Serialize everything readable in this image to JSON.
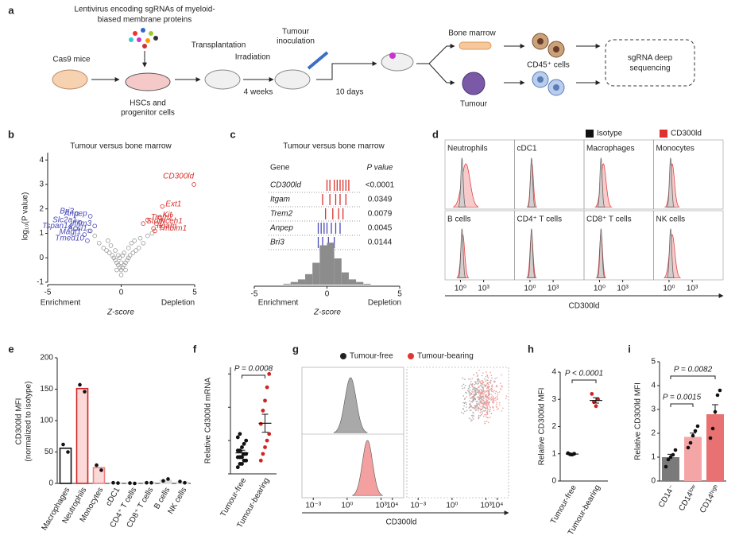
{
  "panel_labels": [
    "a",
    "b",
    "c",
    "d",
    "e",
    "f",
    "g",
    "h",
    "i"
  ],
  "schematic": {
    "title_lines": [
      "Lentivirus encoding sgRNAs of myeloid-",
      "biased membrane proteins"
    ],
    "cas9": "Cas9 mice",
    "hsc_lines": [
      "HSCs and",
      "progenitor cells"
    ],
    "transplantation": "Transplantation",
    "irradiation": "Irradiation",
    "weeks": "4 weeks",
    "inoculation_lines": [
      "Tumour",
      "inoculation"
    ],
    "days": "10 days",
    "bone_marrow": "Bone marrow",
    "tumour": "Tumour",
    "cd45": "CD45⁺ cells",
    "sequencing_lines": [
      "sgRNA deep",
      "sequencing"
    ]
  },
  "chart_data": [
    {
      "type": "scatter",
      "title": "Tumour versus bone marrow",
      "xlabel": "Z-score",
      "ylabel": "log₁₀(P value)",
      "annotations": [
        "Enrichment",
        "Depletion"
      ],
      "xlim": [
        -5,
        5
      ],
      "xticks": [
        -5,
        0,
        5
      ],
      "ylim": [
        -1,
        4.3
      ],
      "yticks": [
        -1,
        0,
        1,
        2,
        3,
        4
      ],
      "series": [
        {
          "color": "#9a9a9a",
          "x": [
            -1.5,
            -1.2,
            -1,
            -0.8,
            -0.6,
            -0.5,
            -0.4,
            -0.3,
            -0.2,
            -0.1,
            0,
            0.1,
            0.2,
            0.3,
            0.4,
            0.5,
            0.6,
            0.8,
            1,
            1.2,
            1.5,
            -0.7,
            -0.4,
            -0.2,
            0,
            0.2,
            0.5,
            0.7,
            -1.8,
            1.8,
            -0.9,
            0.9,
            -0.3,
            0.3,
            0,
            -0.1,
            0.1,
            -2.2,
            2.1,
            1.3
          ],
          "y": [
            0.6,
            0.4,
            0.3,
            0.2,
            0.1,
            0,
            -0.1,
            -0.2,
            -0.3,
            -0.4,
            -0.5,
            -0.4,
            -0.3,
            -0.2,
            -0.1,
            0,
            0.1,
            0.2,
            0.3,
            0.4,
            0.6,
            0.5,
            0.3,
            0.1,
            -0.2,
            0.2,
            0.4,
            0.6,
            0.9,
            0.9,
            0.7,
            0.7,
            -0.5,
            -0.5,
            -0.7,
            0,
            0.1,
            1.1,
            1.0,
            0.8
          ]
        },
        {
          "color": "#d9302c",
          "labels": [
            "CD300ld",
            "Ext1",
            "Kit",
            "Nceh1",
            "Itgam",
            "Tmbim1",
            "Trem2",
            "Stom"
          ],
          "x": [
            4.95,
            2.8,
            2.6,
            2.4,
            2.2,
            2.3,
            1.8,
            1.5
          ],
          "y": [
            3.0,
            2.1,
            1.65,
            1.4,
            1.2,
            1.1,
            1.55,
            1.4
          ]
        },
        {
          "color": "#4a4ab8",
          "labels": [
            "Bri3",
            "Anpep",
            "Slc2a1",
            "Ifitm3",
            "Tspan14",
            "Acsl1",
            "Magt1",
            "Tmed10"
          ],
          "x": [
            -3.0,
            -2.1,
            -2.8,
            -1.8,
            -3.1,
            -2.1,
            -2.5,
            -2.3
          ],
          "y": [
            1.8,
            1.7,
            1.45,
            1.3,
            1.2,
            1.1,
            0.95,
            0.7
          ]
        }
      ]
    },
    {
      "type": "barcode",
      "title": "Tumour versus bone marrow",
      "headers": [
        "Gene",
        "P value"
      ],
      "xlabel": "Z-score",
      "annotations": [
        "Enrichment",
        "Depletion"
      ],
      "xlim": [
        -5,
        5
      ],
      "xticks": [
        -5,
        0,
        5
      ],
      "genes": [
        {
          "name": "CD300ld",
          "p": "<0.0001",
          "color": "#d9302c",
          "z": [
            0.0,
            0.2,
            0.5,
            0.7,
            0.9,
            1.1,
            1.3,
            1.5
          ]
        },
        {
          "name": "Itgam",
          "p": "0.0349",
          "color": "#d9302c",
          "z": [
            -0.3,
            0.2,
            0.6,
            0.9,
            1.3
          ]
        },
        {
          "name": "Trem2",
          "p": "0.0079",
          "color": "#d9302c",
          "z": [
            -0.1,
            0.4,
            0.8,
            1.1
          ]
        },
        {
          "name": "Anpep",
          "p": "0.0045",
          "color": "#4a4ab8",
          "z": [
            -0.6,
            -0.4,
            -0.2,
            0.0,
            0.3,
            0.6,
            0.9
          ]
        },
        {
          "name": "Bri3",
          "p": "0.0144",
          "color": "#4a4ab8",
          "z": [
            -0.6,
            -0.3,
            0.1,
            0.5
          ]
        }
      ],
      "bins": [
        -3,
        -2.5,
        -2,
        -1.5,
        -1,
        -0.5,
        0,
        0.5,
        1,
        1.5,
        2,
        2.5,
        3
      ],
      "counts": [
        1,
        3,
        6,
        12,
        25,
        45,
        48,
        30,
        14,
        6,
        3,
        1
      ],
      "ylim": [
        0,
        50
      ],
      "hist_color": "#8c8c8c"
    },
    {
      "type": "flow",
      "xlabel": "CD300ld",
      "xlim": [
        -2,
        7
      ],
      "xticks": [
        {
          "value": 0,
          "label": "10⁰"
        },
        {
          "value": 3,
          "label": "10³"
        }
      ],
      "series": [
        {
          "name": "Isotype",
          "color": "#111111"
        },
        {
          "name": "CD300ld",
          "color": "#e03030"
        }
      ],
      "cells": [
        {
          "name": "Neutrophils",
          "iso": 0.2,
          "peak": 0.7,
          "width": 0.55
        },
        {
          "name": "cDC1",
          "iso": 0.2,
          "peak": 0.25,
          "width": 0.2
        },
        {
          "name": "Macrophages",
          "iso": 0.2,
          "peak": 0.5,
          "width": 0.35
        },
        {
          "name": "Monocytes",
          "iso": 0.2,
          "peak": 0.4,
          "width": 0.3
        },
        {
          "name": "B cells",
          "iso": 0.2,
          "peak": 0.3,
          "width": 0.25
        },
        {
          "name": "CD4⁺ T cells",
          "iso": 0.2,
          "peak": 0.2,
          "width": 0.2
        },
        {
          "name": "CD8⁺ T cells",
          "iso": 0.2,
          "peak": 0.2,
          "width": 0.2
        },
        {
          "name": "NK cells",
          "iso": 0.2,
          "peak": 0.4,
          "width": 0.35
        }
      ]
    },
    {
      "type": "bar",
      "ylabel_lines": [
        "CD300ld MFI",
        "(normalized to isotype)"
      ],
      "categories": [
        "Macrophages",
        "Neutrophils",
        "Monocytes",
        "cDC1",
        "CD4⁺ T cells",
        "CD8⁺ T cells",
        "B cells",
        "NK cells"
      ],
      "values": [
        56,
        151,
        25,
        1,
        0.5,
        1,
        5,
        2
      ],
      "points": [
        [
          62,
          50
        ],
        [
          157,
          146
        ],
        [
          29,
          21
        ],
        [
          1,
          0.5
        ],
        [
          0.5,
          0
        ],
        [
          1,
          1
        ],
        [
          4,
          7
        ],
        [
          3,
          1
        ]
      ],
      "fills": [
        "#ffffff",
        "#fbd9d9",
        "#fbd9d9",
        "#dddddd",
        "#dddddd",
        "#dddddd",
        "#dddddd",
        "#dddddd"
      ],
      "edges": [
        "#111111",
        "#d22222",
        "#f08080",
        "#dddddd",
        "#dddddd",
        "#dddddd",
        "#dddddd",
        "#dddddd"
      ],
      "ylim": [
        0,
        200
      ],
      "yticks": [
        0,
        50,
        100,
        150,
        200
      ]
    },
    {
      "type": "dots",
      "ylabel": "Relative Cd300ld mRNA",
      "annotation": "P = 0.0008",
      "categories": [
        "Tumour-free",
        "Tumour-bearing"
      ],
      "colors": [
        "#111111",
        "#d22222"
      ],
      "points": [
        [
          0.02,
          0.03,
          0.03,
          0.04,
          0.04,
          0.05,
          0.05,
          0.05,
          0.06,
          0.06,
          0.07,
          0.07,
          0.08,
          0.09,
          0.1,
          0.11,
          0.12
        ],
        [
          0.04,
          0.06,
          0.08,
          0.1,
          0.12,
          0.15,
          0.19,
          0.22,
          0.26,
          0.3
        ]
      ],
      "means": [
        0.063,
        0.152
      ],
      "sems": [
        0.008,
        0.027
      ],
      "ylim": [
        0,
        0.32
      ],
      "yticks": [
        0,
        0.1,
        0.2,
        0.3
      ]
    },
    {
      "type": "flow-overlay",
      "xlabel": "CD300ld",
      "xlim": [
        -4,
        5
      ],
      "xticks": [
        {
          "value": -3,
          "label": "10⁻³"
        },
        {
          "value": 0,
          "label": "10⁰"
        },
        {
          "value": 3,
          "label": "10³"
        },
        {
          "value": 4,
          "label": "10⁴"
        }
      ],
      "series": [
        {
          "name": "Tumour-free",
          "color": "#222222",
          "fill": "#a9a9a9",
          "peak": 0.3,
          "width": 0.5,
          "cloud_x": 2.4
        },
        {
          "name": "Tumour-bearing",
          "color": "#e33333",
          "fill": "#f4a0a0",
          "peak": 1.8,
          "width": 0.45,
          "cloud_x": 3.0
        }
      ]
    },
    {
      "type": "dots",
      "ylabel": "Relative CD300ld MFI",
      "annotation": "P < 0.0001",
      "categories": [
        "Tumour-free",
        "Tumour-bearing"
      ],
      "colors": [
        "#111111",
        "#d22222"
      ],
      "points": [
        [
          1.02,
          0.98,
          0.97,
          1.0
        ],
        [
          3.2,
          2.9,
          2.75,
          3.0
        ]
      ],
      "means": [
        0.99,
        2.96
      ],
      "sems": [
        0.02,
        0.1
      ],
      "ylim": [
        0,
        4
      ],
      "yticks": [
        0,
        1,
        2,
        3,
        4
      ]
    },
    {
      "type": "bar-dots",
      "ylabel": "Relative CD300ld MFI",
      "annotations": [
        "P = 0.0015",
        "P = 0.0082"
      ],
      "categories": [
        "CD14⁻",
        "CD14ˡᵒʷ",
        "CD14ʰⁱᵍʰ"
      ],
      "values": [
        1.0,
        1.85,
        2.8
      ],
      "errors": [
        0.12,
        0.16,
        0.4
      ],
      "points": [
        [
          0.6,
          0.9,
          1.0,
          1.1,
          1.3
        ],
        [
          1.4,
          1.6,
          1.9,
          2.1,
          2.3
        ],
        [
          1.8,
          2.2,
          2.9,
          3.6,
          3.8
        ]
      ],
      "fills": [
        "#7a7a7a",
        "#f4a5a5",
        "#e87272"
      ],
      "ylim": [
        0,
        5
      ],
      "yticks": [
        0,
        1,
        2,
        3,
        4,
        5
      ]
    }
  ]
}
